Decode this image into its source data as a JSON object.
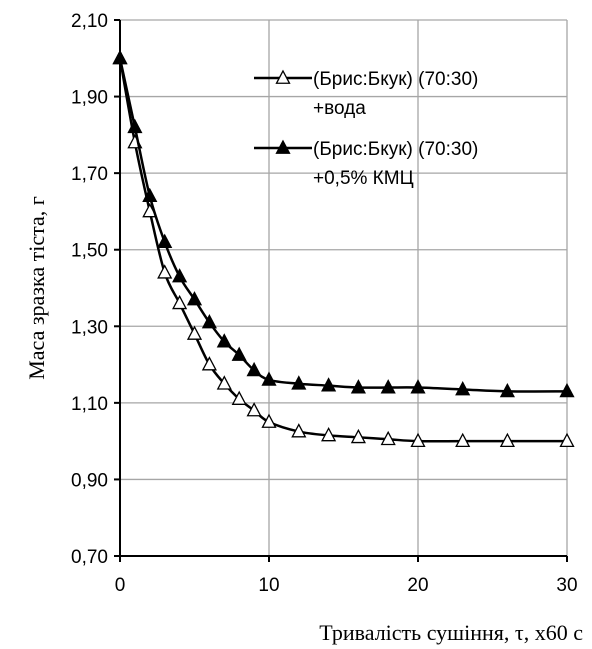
{
  "chart_data": {
    "type": "line",
    "xlabel": "Тривалість сушіння,  τ, х60 с",
    "ylabel": "Маса зразка тіста, г",
    "xlim": [
      0,
      30
    ],
    "ylim": [
      0.7,
      2.1
    ],
    "x_ticks": [
      "0",
      "10",
      "20",
      "30"
    ],
    "x_tick_values": [
      0,
      10,
      20,
      30
    ],
    "y_ticks": [
      "0,70",
      "0,90",
      "1,10",
      "1,30",
      "1,50",
      "1,70",
      "1,90",
      "2,10"
    ],
    "y_tick_values": [
      0.7,
      0.9,
      1.1,
      1.3,
      1.5,
      1.7,
      1.9,
      2.1
    ],
    "grid": true,
    "legend_position": "top-right",
    "series": [
      {
        "name": "(Брис:Бкук) (70:30) +вода",
        "legend_lines": [
          "(Брис:Бкук) (70:30)",
          "+вода"
        ],
        "marker": "open-triangle",
        "x": [
          0,
          1,
          2,
          3,
          4,
          5,
          6,
          7,
          8,
          9,
          10,
          12,
          14,
          16,
          18,
          20,
          23,
          26,
          30
        ],
        "y": [
          2.0,
          1.78,
          1.6,
          1.44,
          1.36,
          1.28,
          1.2,
          1.15,
          1.11,
          1.08,
          1.05,
          1.025,
          1.015,
          1.01,
          1.005,
          1.0,
          1.0,
          1.0,
          1.0
        ]
      },
      {
        "name": "(Брис:Бкук) (70:30) +0,5% КМЦ",
        "legend_lines": [
          "(Брис:Бкук) (70:30)",
          "+0,5% КМЦ"
        ],
        "marker": "filled-triangle",
        "x": [
          0,
          1,
          2,
          3,
          4,
          5,
          6,
          7,
          8,
          9,
          10,
          12,
          14,
          16,
          18,
          20,
          23,
          26,
          30
        ],
        "y": [
          2.0,
          1.82,
          1.64,
          1.52,
          1.43,
          1.37,
          1.31,
          1.26,
          1.225,
          1.185,
          1.16,
          1.15,
          1.145,
          1.14,
          1.14,
          1.14,
          1.135,
          1.13,
          1.13
        ]
      }
    ],
    "colors": {
      "line": "#000000",
      "grid": "#a6a6a6",
      "background": "#ffffff"
    }
  }
}
